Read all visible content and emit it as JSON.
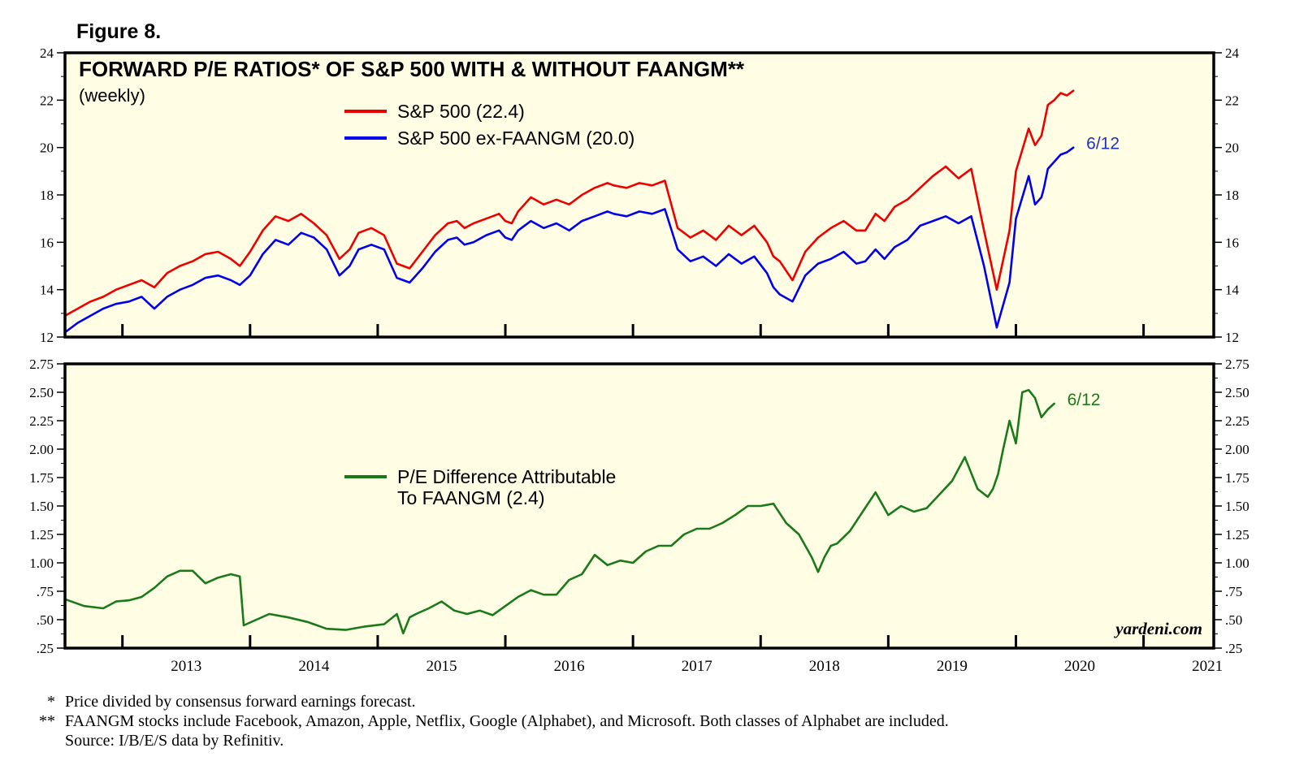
{
  "figure_label": "Figure 8.",
  "watermark": "yardeni.com",
  "colors": {
    "panel_bg": "#fffde4",
    "frame": "#000000",
    "sp500": "#ee0000",
    "ex_faangm": "#0000ee",
    "difference": "#1a7a1a",
    "end_label_top": "#2233bb",
    "end_label_bottom": "#1a7a1a"
  },
  "footnotes": [
    {
      "marker": "*",
      "text": "Price divided by consensus forward earnings forecast."
    },
    {
      "marker": "**",
      "text": "FAANGM stocks include Facebook, Amazon, Apple, Netflix, Google (Alphabet), and Microsoft. Both classes of Alphabet are included."
    },
    {
      "marker": "",
      "text": "Source: I/B/E/S data by Refinitiv."
    }
  ],
  "chart_data": [
    {
      "type": "line",
      "title": "FORWARD P/E RATIOS* OF S&P 500 WITH & WITHOUT FAANGM**",
      "subtitle": "(weekly)",
      "end_label": "6/12",
      "xlim": [
        2012.55,
        2021.55
      ],
      "ylim": [
        12,
        24
      ],
      "y_ticks": [
        12,
        14,
        16,
        18,
        20,
        22,
        24
      ],
      "y_tick_labels": [
        "12",
        "14",
        "16",
        "18",
        "20",
        "22",
        "24"
      ],
      "x_tick_years": [
        "2013",
        "2014",
        "2015",
        "2016",
        "2017",
        "2018",
        "2019",
        "2020",
        "2021"
      ],
      "series": [
        {
          "name": "S&P 500 (22.4)",
          "color": "#ee0000",
          "x": [
            2012.55,
            2012.65,
            2012.75,
            2012.85,
            2012.95,
            2013.05,
            2013.15,
            2013.25,
            2013.35,
            2013.45,
            2013.55,
            2013.65,
            2013.75,
            2013.85,
            2013.92,
            2014.0,
            2014.1,
            2014.2,
            2014.3,
            2014.4,
            2014.5,
            2014.6,
            2014.7,
            2014.78,
            2014.85,
            2014.95,
            2015.05,
            2015.15,
            2015.25,
            2015.35,
            2015.45,
            2015.55,
            2015.62,
            2015.68,
            2015.75,
            2015.85,
            2015.95,
            2016.0,
            2016.05,
            2016.1,
            2016.2,
            2016.3,
            2016.4,
            2016.5,
            2016.6,
            2016.7,
            2016.8,
            2016.85,
            2016.95,
            2017.05,
            2017.15,
            2017.25,
            2017.35,
            2017.45,
            2017.55,
            2017.65,
            2017.75,
            2017.85,
            2017.95,
            2018.05,
            2018.1,
            2018.15,
            2018.25,
            2018.35,
            2018.45,
            2018.55,
            2018.65,
            2018.75,
            2018.82,
            2018.9,
            2018.97,
            2019.05,
            2019.15,
            2019.25,
            2019.35,
            2019.45,
            2019.55,
            2019.65,
            2019.75,
            2019.85,
            2019.95,
            2020.0,
            2020.1,
            2020.15,
            2020.2,
            2020.22,
            2020.25,
            2020.3,
            2020.35,
            2020.4,
            2020.45
          ],
          "values": [
            12.9,
            13.2,
            13.5,
            13.7,
            14.0,
            14.2,
            14.4,
            14.1,
            14.7,
            15.0,
            15.2,
            15.5,
            15.6,
            15.3,
            15.0,
            15.6,
            16.5,
            17.1,
            16.9,
            17.2,
            16.8,
            16.3,
            15.3,
            15.7,
            16.4,
            16.6,
            16.3,
            15.1,
            14.9,
            15.6,
            16.3,
            16.8,
            16.9,
            16.6,
            16.8,
            17.0,
            17.2,
            16.9,
            16.8,
            17.3,
            17.9,
            17.6,
            17.8,
            17.6,
            18.0,
            18.3,
            18.5,
            18.4,
            18.3,
            18.5,
            18.4,
            18.6,
            16.6,
            16.2,
            16.5,
            16.1,
            16.7,
            16.3,
            16.7,
            16.0,
            15.4,
            15.2,
            14.4,
            15.6,
            16.2,
            16.6,
            16.9,
            16.5,
            16.5,
            17.2,
            16.9,
            17.5,
            17.8,
            18.3,
            18.8,
            19.2,
            18.7,
            19.1,
            16.5,
            14.0,
            16.5,
            19.0,
            20.8,
            20.1,
            20.5,
            21.0,
            21.8,
            22.0,
            22.3,
            22.2,
            22.4
          ]
        },
        {
          "name": "S&P 500 ex-FAANGM (20.0)",
          "color": "#0000ee",
          "x": [
            2012.55,
            2012.65,
            2012.75,
            2012.85,
            2012.95,
            2013.05,
            2013.15,
            2013.25,
            2013.35,
            2013.45,
            2013.55,
            2013.65,
            2013.75,
            2013.85,
            2013.92,
            2014.0,
            2014.1,
            2014.2,
            2014.3,
            2014.4,
            2014.5,
            2014.6,
            2014.7,
            2014.78,
            2014.85,
            2014.95,
            2015.05,
            2015.15,
            2015.25,
            2015.35,
            2015.45,
            2015.55,
            2015.62,
            2015.68,
            2015.75,
            2015.85,
            2015.95,
            2016.0,
            2016.05,
            2016.1,
            2016.2,
            2016.3,
            2016.4,
            2016.5,
            2016.6,
            2016.7,
            2016.8,
            2016.85,
            2016.95,
            2017.05,
            2017.15,
            2017.25,
            2017.35,
            2017.45,
            2017.55,
            2017.65,
            2017.75,
            2017.85,
            2017.95,
            2018.05,
            2018.1,
            2018.15,
            2018.25,
            2018.35,
            2018.45,
            2018.55,
            2018.65,
            2018.75,
            2018.82,
            2018.9,
            2018.97,
            2019.05,
            2019.15,
            2019.25,
            2019.35,
            2019.45,
            2019.55,
            2019.65,
            2019.75,
            2019.85,
            2019.95,
            2020.0,
            2020.1,
            2020.15,
            2020.2,
            2020.22,
            2020.25,
            2020.3,
            2020.35,
            2020.4,
            2020.45
          ],
          "values": [
            12.2,
            12.6,
            12.9,
            13.2,
            13.4,
            13.5,
            13.7,
            13.2,
            13.7,
            14.0,
            14.2,
            14.5,
            14.6,
            14.4,
            14.2,
            14.6,
            15.5,
            16.1,
            15.9,
            16.4,
            16.2,
            15.7,
            14.6,
            15.0,
            15.7,
            15.9,
            15.7,
            14.5,
            14.3,
            14.9,
            15.6,
            16.1,
            16.2,
            15.9,
            16.0,
            16.3,
            16.5,
            16.2,
            16.1,
            16.5,
            16.9,
            16.6,
            16.8,
            16.5,
            16.9,
            17.1,
            17.3,
            17.2,
            17.1,
            17.3,
            17.2,
            17.4,
            15.7,
            15.2,
            15.4,
            15.0,
            15.5,
            15.1,
            15.4,
            14.7,
            14.1,
            13.8,
            13.5,
            14.6,
            15.1,
            15.3,
            15.6,
            15.1,
            15.2,
            15.7,
            15.3,
            15.8,
            16.1,
            16.7,
            16.9,
            17.1,
            16.8,
            17.1,
            15.0,
            12.4,
            14.3,
            17.0,
            18.8,
            17.6,
            17.9,
            18.3,
            19.1,
            19.4,
            19.7,
            19.8,
            20.0
          ]
        }
      ]
    },
    {
      "type": "line",
      "title": "",
      "end_label": "6/12",
      "xlim": [
        2012.55,
        2021.55
      ],
      "ylim": [
        0.25,
        2.75
      ],
      "y_ticks": [
        0.25,
        0.5,
        0.75,
        1.0,
        1.25,
        1.5,
        1.75,
        2.0,
        2.25,
        2.5,
        2.75
      ],
      "y_tick_labels": [
        ".25",
        ".50",
        ".75",
        "1.00",
        "1.25",
        "1.50",
        "1.75",
        "2.00",
        "2.25",
        "2.50",
        "2.75"
      ],
      "x_tick_years": [
        "2013",
        "2014",
        "2015",
        "2016",
        "2017",
        "2018",
        "2019",
        "2020",
        "2021"
      ],
      "series": [
        {
          "name": "P/E Difference Attributable To FAANGM (2.4)",
          "color": "#1a7a1a",
          "x": [
            2012.55,
            2012.7,
            2012.85,
            2012.95,
            2013.05,
            2013.15,
            2013.25,
            2013.35,
            2013.45,
            2013.55,
            2013.65,
            2013.75,
            2013.85,
            2013.92,
            2013.95,
            2014.05,
            2014.15,
            2014.3,
            2014.45,
            2014.6,
            2014.75,
            2014.9,
            2015.05,
            2015.15,
            2015.2,
            2015.25,
            2015.3,
            2015.4,
            2015.5,
            2015.6,
            2015.7,
            2015.8,
            2015.9,
            2016.0,
            2016.1,
            2016.2,
            2016.3,
            2016.4,
            2016.5,
            2016.6,
            2016.7,
            2016.8,
            2016.9,
            2017.0,
            2017.1,
            2017.2,
            2017.3,
            2017.4,
            2017.5,
            2017.6,
            2017.7,
            2017.8,
            2017.9,
            2018.0,
            2018.1,
            2018.2,
            2018.3,
            2018.4,
            2018.45,
            2018.5,
            2018.55,
            2018.6,
            2018.7,
            2018.8,
            2018.9,
            2019.0,
            2019.1,
            2019.2,
            2019.3,
            2019.4,
            2019.5,
            2019.6,
            2019.7,
            2019.78,
            2019.82,
            2019.86,
            2019.9,
            2019.95,
            2020.0,
            2020.05,
            2020.1,
            2020.15,
            2020.2,
            2020.25,
            2020.3
          ],
          "values": [
            0.68,
            0.62,
            0.6,
            0.66,
            0.67,
            0.7,
            0.78,
            0.88,
            0.93,
            0.93,
            0.82,
            0.87,
            0.9,
            0.88,
            0.45,
            0.5,
            0.55,
            0.52,
            0.48,
            0.42,
            0.41,
            0.44,
            0.46,
            0.55,
            0.38,
            0.52,
            0.55,
            0.6,
            0.66,
            0.58,
            0.55,
            0.58,
            0.54,
            0.62,
            0.7,
            0.76,
            0.72,
            0.72,
            0.85,
            0.9,
            1.07,
            0.98,
            1.02,
            1.0,
            1.1,
            1.15,
            1.15,
            1.25,
            1.3,
            1.3,
            1.35,
            1.42,
            1.5,
            1.5,
            1.52,
            1.35,
            1.25,
            1.05,
            0.92,
            1.05,
            1.15,
            1.17,
            1.28,
            1.45,
            1.62,
            1.42,
            1.5,
            1.45,
            1.48,
            1.6,
            1.72,
            1.93,
            1.65,
            1.58,
            1.65,
            1.78,
            2.0,
            2.25,
            2.05,
            2.5,
            2.52,
            2.45,
            2.28,
            2.35,
            2.4
          ]
        }
      ]
    }
  ]
}
